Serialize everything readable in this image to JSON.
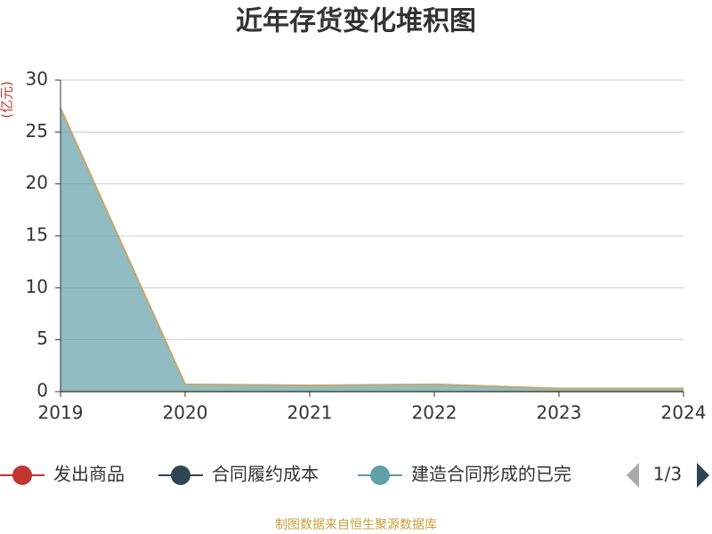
{
  "chart_data": {
    "type": "stacked-area",
    "title": "近年存货变化堆积图",
    "y_axis_label": "(亿元)",
    "categories": [
      "2019",
      "2020",
      "2021",
      "2022",
      "2023",
      "2024"
    ],
    "series": [
      {
        "name": "发出商品",
        "color": "#c23531",
        "values": [
          0,
          0,
          0,
          0,
          0,
          0
        ]
      },
      {
        "name": "合同履约成本",
        "color": "#2f4554",
        "values": [
          0,
          0,
          0,
          0,
          0,
          0
        ]
      },
      {
        "name": "建造合同形成的已完",
        "color": "#61a0a8",
        "values": [
          27.3,
          0.7,
          0.6,
          0.7,
          0.3,
          0.3
        ]
      }
    ],
    "ylim": [
      0,
      30
    ],
    "yticks": [
      0,
      5,
      10,
      15,
      20,
      25,
      30
    ],
    "grid": true,
    "legend_page": "1/3",
    "source": "制图数据来自恒生聚源数据库"
  }
}
